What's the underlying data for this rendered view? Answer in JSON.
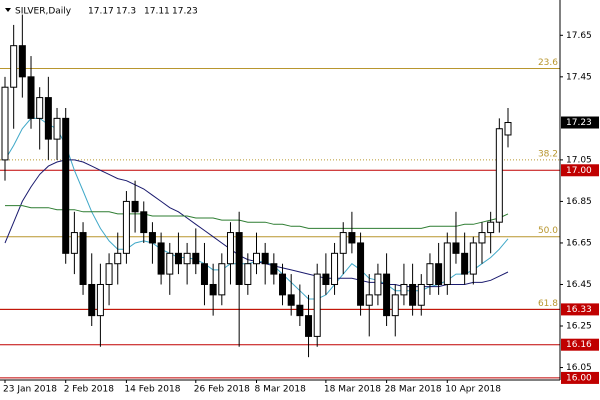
{
  "chart_data": {
    "type": "candlestick",
    "title": "SILVER,Daily",
    "categories": [
      "23 Jan 2018",
      null,
      null,
      null,
      null,
      null,
      null,
      "2 Feb 2018",
      null,
      null,
      null,
      null,
      null,
      null,
      "14 Feb 2018",
      null,
      null,
      null,
      null,
      null,
      null,
      null,
      "26 Feb 2018",
      null,
      null,
      null,
      null,
      null,
      null,
      "8 Mar 2018",
      null,
      null,
      null,
      null,
      null,
      null,
      null,
      "18 Mar 2018",
      null,
      null,
      null,
      null,
      null,
      null,
      "28 Mar 2018",
      null,
      null,
      null,
      null,
      null,
      null,
      "10 Apr 2018",
      null,
      null,
      null,
      null,
      null,
      null,
      null
    ],
    "ohlc": {
      "open": [
        17.05,
        17.4,
        17.6,
        17.45,
        17.25,
        17.35,
        17.15,
        17.25,
        16.6,
        16.7,
        16.45,
        16.3,
        16.45,
        16.55,
        16.6,
        16.85,
        16.8,
        16.7,
        16.65,
        16.5,
        16.6,
        16.55,
        16.6,
        16.55,
        16.45,
        16.4,
        16.55,
        16.7,
        16.45,
        16.55,
        16.6,
        16.55,
        16.5,
        16.4,
        16.35,
        16.3,
        16.2,
        16.5,
        16.45,
        16.6,
        16.7,
        16.65,
        16.35,
        16.4,
        16.5,
        16.3,
        16.4,
        16.45,
        16.35,
        16.45,
        16.55,
        16.45,
        16.65,
        16.6,
        16.5,
        16.65,
        16.7,
        16.75,
        17.17
      ],
      "high": [
        17.45,
        17.7,
        17.75,
        17.55,
        17.4,
        17.45,
        17.3,
        17.3,
        16.8,
        16.75,
        16.6,
        16.55,
        16.6,
        16.7,
        16.9,
        16.95,
        16.85,
        16.75,
        16.7,
        16.65,
        16.7,
        16.65,
        16.72,
        16.65,
        16.55,
        16.6,
        16.75,
        16.8,
        16.6,
        16.7,
        16.65,
        16.6,
        16.55,
        16.5,
        16.45,
        16.4,
        16.55,
        16.6,
        16.65,
        16.75,
        16.8,
        16.7,
        16.5,
        16.55,
        16.6,
        16.45,
        16.55,
        16.55,
        16.5,
        16.6,
        16.65,
        16.7,
        16.8,
        16.7,
        16.68,
        16.75,
        16.8,
        17.25,
        17.3
      ],
      "low": [
        16.95,
        17.2,
        17.35,
        17.2,
        17.1,
        17.05,
        17.05,
        16.55,
        16.5,
        16.4,
        16.25,
        16.15,
        16.35,
        16.45,
        16.55,
        16.7,
        16.65,
        16.55,
        16.45,
        16.4,
        16.5,
        16.45,
        16.5,
        16.35,
        16.3,
        16.35,
        16.45,
        16.15,
        16.4,
        16.5,
        16.45,
        16.45,
        16.35,
        16.3,
        16.25,
        16.1,
        16.15,
        16.4,
        16.4,
        16.5,
        16.6,
        16.3,
        16.2,
        16.35,
        16.25,
        16.2,
        16.35,
        16.3,
        16.3,
        16.4,
        16.4,
        16.4,
        16.55,
        16.45,
        16.45,
        16.55,
        16.6,
        16.7,
        17.11
      ],
      "close": [
        17.4,
        17.6,
        17.45,
        17.25,
        17.35,
        17.15,
        17.25,
        16.6,
        16.7,
        16.45,
        16.3,
        16.45,
        16.55,
        16.6,
        16.85,
        16.8,
        16.7,
        16.65,
        16.5,
        16.6,
        16.55,
        16.6,
        16.55,
        16.45,
        16.4,
        16.55,
        16.7,
        16.45,
        16.55,
        16.6,
        16.55,
        16.5,
        16.4,
        16.35,
        16.3,
        16.2,
        16.5,
        16.45,
        16.6,
        16.7,
        16.65,
        16.35,
        16.4,
        16.5,
        16.3,
        16.4,
        16.45,
        16.35,
        16.45,
        16.55,
        16.45,
        16.65,
        16.6,
        16.5,
        16.65,
        16.7,
        16.75,
        17.2,
        17.23
      ]
    },
    "lines": [
      {
        "color": "#3fa8c8",
        "values": [
          17.05,
          17.12,
          17.2,
          17.25,
          17.25,
          17.22,
          17.2,
          17.12,
          17.0,
          16.9,
          16.8,
          16.72,
          16.66,
          16.62,
          16.62,
          16.65,
          16.66,
          16.65,
          16.62,
          16.6,
          16.58,
          16.58,
          16.57,
          16.55,
          16.52,
          16.52,
          16.55,
          16.55,
          16.55,
          16.56,
          16.56,
          16.54,
          16.5,
          16.46,
          16.42,
          16.38,
          16.38,
          16.4,
          16.45,
          16.5,
          16.55,
          16.52,
          16.48,
          16.47,
          16.45,
          16.42,
          16.42,
          16.42,
          16.42,
          16.44,
          16.45,
          16.47,
          16.5,
          16.5,
          16.52,
          16.55,
          16.58,
          16.62,
          16.67
        ]
      },
      {
        "color": "#1a1a6e",
        "values": [
          16.65,
          16.75,
          16.85,
          16.92,
          16.98,
          17.02,
          17.04,
          17.05,
          17.05,
          17.04,
          17.02,
          17.0,
          16.98,
          16.96,
          16.95,
          16.93,
          16.91,
          16.88,
          16.85,
          16.82,
          16.8,
          16.77,
          16.74,
          16.71,
          16.68,
          16.65,
          16.62,
          16.59,
          16.57,
          16.56,
          16.55,
          16.54,
          16.53,
          16.52,
          16.51,
          16.5,
          16.49,
          16.48,
          16.48,
          16.48,
          16.48,
          16.47,
          16.46,
          16.46,
          16.45,
          16.45,
          16.44,
          16.44,
          16.44,
          16.44,
          16.44,
          16.45,
          16.45,
          16.45,
          16.46,
          16.46,
          16.47,
          16.49,
          16.51
        ]
      },
      {
        "color": "#2e7d32",
        "values": [
          16.83,
          16.83,
          16.83,
          16.82,
          16.82,
          16.82,
          16.81,
          16.81,
          16.81,
          16.8,
          16.8,
          16.8,
          16.8,
          16.79,
          16.79,
          16.79,
          16.79,
          16.78,
          16.78,
          16.78,
          16.78,
          16.78,
          16.77,
          16.77,
          16.77,
          16.76,
          16.76,
          16.76,
          16.75,
          16.75,
          16.75,
          16.74,
          16.74,
          16.73,
          16.73,
          16.72,
          16.72,
          16.72,
          16.72,
          16.72,
          16.72,
          16.72,
          16.72,
          16.72,
          16.72,
          16.72,
          16.72,
          16.72,
          16.72,
          16.73,
          16.73,
          16.73,
          16.73,
          16.74,
          16.74,
          16.75,
          16.76,
          16.77,
          16.79
        ]
      }
    ],
    "levels": [
      {
        "value": 17.0,
        "label": "17.00"
      },
      {
        "value": 16.33,
        "label": "16.33"
      },
      {
        "value": 16.16,
        "label": "16.16"
      },
      {
        "value": 16.0,
        "label": "16.00"
      }
    ],
    "levels_color": "#c00000",
    "fib_levels": [
      {
        "value": 17.49,
        "label": "23.6"
      },
      {
        "value": 17.05,
        "label": "38.2"
      },
      {
        "value": 16.68,
        "label": "50.0"
      },
      {
        "value": 16.33,
        "label": "61.8"
      }
    ],
    "fib_color": "#b8962e",
    "ylim": [
      15.99,
      17.82
    ],
    "yticks": [
      17.65,
      17.45,
      17.05,
      16.85,
      16.65,
      16.45,
      16.25,
      16.05
    ]
  }
}
